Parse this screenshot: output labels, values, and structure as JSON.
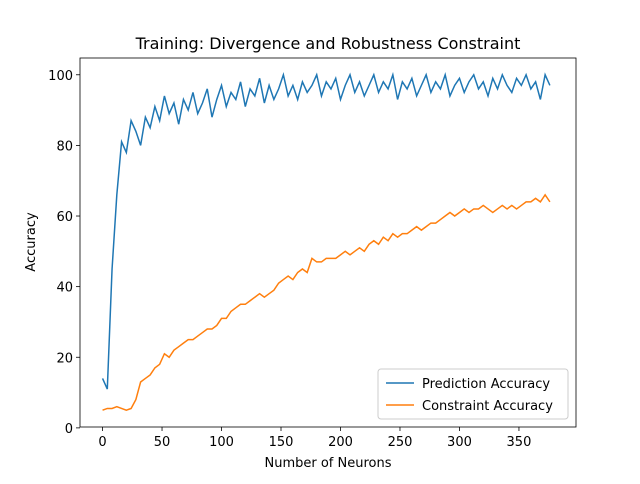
{
  "chart_data": {
    "type": "line",
    "title": "Training: Divergence and Robustness Constraint",
    "xlabel": "Number of Neurons",
    "ylabel": "Accuracy",
    "x": [
      0,
      4,
      8,
      12,
      16,
      20,
      24,
      28,
      32,
      36,
      40,
      44,
      48,
      52,
      56,
      60,
      64,
      68,
      72,
      76,
      80,
      84,
      88,
      92,
      96,
      100,
      104,
      108,
      112,
      116,
      120,
      124,
      128,
      132,
      136,
      140,
      144,
      148,
      152,
      156,
      160,
      164,
      168,
      172,
      176,
      180,
      184,
      188,
      192,
      196,
      200,
      204,
      208,
      212,
      216,
      220,
      224,
      228,
      232,
      236,
      240,
      244,
      248,
      252,
      256,
      260,
      264,
      268,
      272,
      276,
      280,
      284,
      288,
      292,
      296,
      300,
      304,
      308,
      312,
      316,
      320,
      324,
      328,
      332,
      336,
      340,
      344,
      348,
      352,
      356,
      360,
      364,
      368,
      372,
      376
    ],
    "series": [
      {
        "name": "Prediction Accuracy",
        "color": "#1f77b4",
        "values": [
          14,
          11,
          45,
          66,
          81,
          78,
          87,
          84,
          80,
          88,
          85,
          91,
          87,
          94,
          89,
          92,
          86,
          93,
          90,
          95,
          89,
          92,
          96,
          88,
          93,
          97,
          91,
          95,
          93,
          98,
          91,
          96,
          94,
          99,
          92,
          97,
          93,
          96,
          100,
          94,
          97,
          93,
          98,
          95,
          97,
          100,
          94,
          98,
          96,
          99,
          93,
          97,
          100,
          95,
          98,
          94,
          97,
          100,
          95,
          98,
          96,
          100,
          93,
          98,
          96,
          99,
          94,
          97,
          100,
          95,
          98,
          96,
          100,
          94,
          97,
          99,
          95,
          98,
          100,
          96,
          98,
          94,
          99,
          96,
          100,
          97,
          95,
          99,
          97,
          100,
          96,
          98,
          93,
          100,
          97
        ]
      },
      {
        "name": "Constraint Accuracy",
        "color": "#ff7f0e",
        "values": [
          5,
          5.5,
          5.5,
          6,
          5.5,
          5,
          5.5,
          8,
          13,
          14,
          15,
          17,
          18,
          21,
          20,
          22,
          23,
          24,
          25,
          25,
          26,
          27,
          28,
          28,
          29,
          31,
          31,
          33,
          34,
          35,
          35,
          36,
          37,
          38,
          37,
          38,
          39,
          41,
          42,
          43,
          42,
          44,
          45,
          44,
          48,
          47,
          47,
          48,
          48,
          48,
          49,
          50,
          49,
          50,
          51,
          50,
          52,
          53,
          52,
          54,
          53,
          55,
          54,
          55,
          55,
          56,
          57,
          56,
          57,
          58,
          58,
          59,
          60,
          61,
          60,
          61,
          62,
          61,
          62,
          62,
          63,
          62,
          61,
          62,
          63,
          62,
          63,
          62,
          63,
          64,
          64,
          65,
          64,
          66,
          64
        ]
      }
    ],
    "xlim": [
      -18.95,
      397.95
    ],
    "ylim": [
      0.25,
      104.75
    ],
    "xticks": [
      0,
      50,
      100,
      150,
      200,
      250,
      300,
      350
    ],
    "yticks": [
      0,
      20,
      40,
      60,
      80,
      100
    ],
    "grid": false,
    "legend": "lower right"
  }
}
